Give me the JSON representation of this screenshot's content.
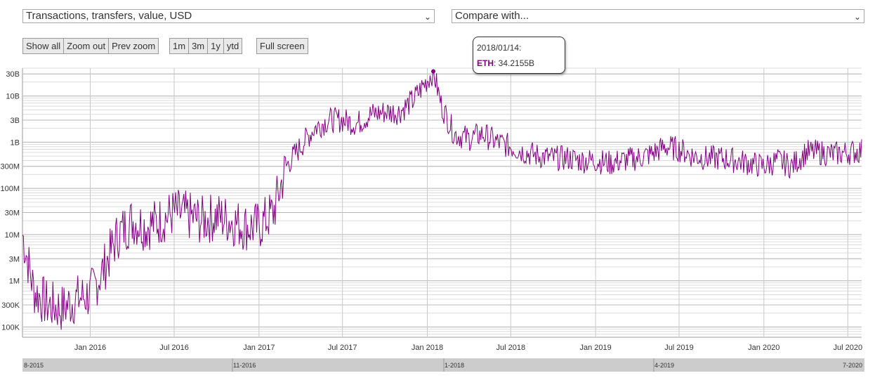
{
  "controls": {
    "metric_select": "Transactions, transfers, value, USD",
    "compare_select": "Compare with...",
    "zoom_buttons": [
      "Show all",
      "Zoom out",
      "Prev zoom"
    ],
    "range_buttons": [
      "1m",
      "3m",
      "1y",
      "ytd"
    ],
    "fullscreen_label": "Full screen"
  },
  "tooltip": {
    "date": "2018/01/14:",
    "series": "ETH",
    "value": ": 34.2155B"
  },
  "navigator": {
    "labels": [
      "8-2015",
      "11-2016",
      "1-2018",
      "4-2019",
      "7-2020"
    ]
  },
  "colors": {
    "series": "#800080",
    "grid": "#c8c8c8",
    "navigator_bg": "#cccccc"
  },
  "chart_data": {
    "type": "line",
    "title": "",
    "xlabel": "",
    "ylabel": "",
    "y_scale": "log",
    "ylim": [
      60000,
      40000000000
    ],
    "xlim": [
      "2015-08-07",
      "2020-07-31"
    ],
    "x_ticks": [
      "Jan 2016",
      "Jul 2016",
      "Jan 2017",
      "Jul 2017",
      "Jan 2018",
      "Jul 2018",
      "Jan 2019",
      "Jul 2019",
      "Jan 2020",
      "Jul 2020"
    ],
    "y_ticks": [
      "100K",
      "300K",
      "1M",
      "3M",
      "10M",
      "30M",
      "100M",
      "300M",
      "1B",
      "3B",
      "10B",
      "30B"
    ],
    "grid": true,
    "legend": "none",
    "highlight": {
      "x": "2018-01-14",
      "y": 34215500000
    },
    "series": [
      {
        "name": "ETH",
        "x": [
          "2015-08-07",
          "2015-09-01",
          "2015-10-01",
          "2015-11-01",
          "2015-12-01",
          "2016-01-01",
          "2016-02-01",
          "2016-03-01",
          "2016-04-01",
          "2016-05-01",
          "2016-06-01",
          "2016-07-01",
          "2016-08-01",
          "2016-09-01",
          "2016-10-01",
          "2016-11-01",
          "2016-12-01",
          "2017-01-01",
          "2017-02-01",
          "2017-03-01",
          "2017-04-01",
          "2017-05-01",
          "2017-06-01",
          "2017-07-01",
          "2017-08-01",
          "2017-09-01",
          "2017-10-01",
          "2017-11-01",
          "2017-12-01",
          "2018-01-14",
          "2018-02-01",
          "2018-03-01",
          "2018-04-01",
          "2018-05-01",
          "2018-06-01",
          "2018-07-01",
          "2018-08-01",
          "2018-09-01",
          "2018-10-01",
          "2018-11-01",
          "2018-12-01",
          "2019-01-01",
          "2019-02-01",
          "2019-03-01",
          "2019-04-01",
          "2019-05-01",
          "2019-06-01",
          "2019-07-01",
          "2019-08-01",
          "2019-09-01",
          "2019-10-01",
          "2019-11-01",
          "2019-12-01",
          "2020-01-01",
          "2020-02-01",
          "2020-03-01",
          "2020-04-01",
          "2020-05-01",
          "2020-06-01",
          "2020-07-31"
        ],
        "y": [
          10000000,
          600000,
          300000,
          250000,
          400000,
          500000,
          2000000,
          10000000,
          20000000,
          15000000,
          20000000,
          30000000,
          25000000,
          20000000,
          25000000,
          20000000,
          15000000,
          15000000,
          30000000,
          300000000,
          800000000,
          2000000000,
          3000000000,
          3000000000,
          2500000000,
          4000000000,
          4500000000,
          4500000000,
          8000000000,
          34215500000,
          6000000000,
          1500000000,
          1200000000,
          1500000000,
          1000000000,
          800000000,
          600000000,
          500000000,
          450000000,
          450000000,
          400000000,
          400000000,
          350000000,
          400000000,
          450000000,
          550000000,
          800000000,
          700000000,
          500000000,
          450000000,
          450000000,
          400000000,
          350000000,
          300000000,
          400000000,
          300000000,
          600000000,
          600000000,
          550000000,
          650000000
        ]
      }
    ]
  }
}
